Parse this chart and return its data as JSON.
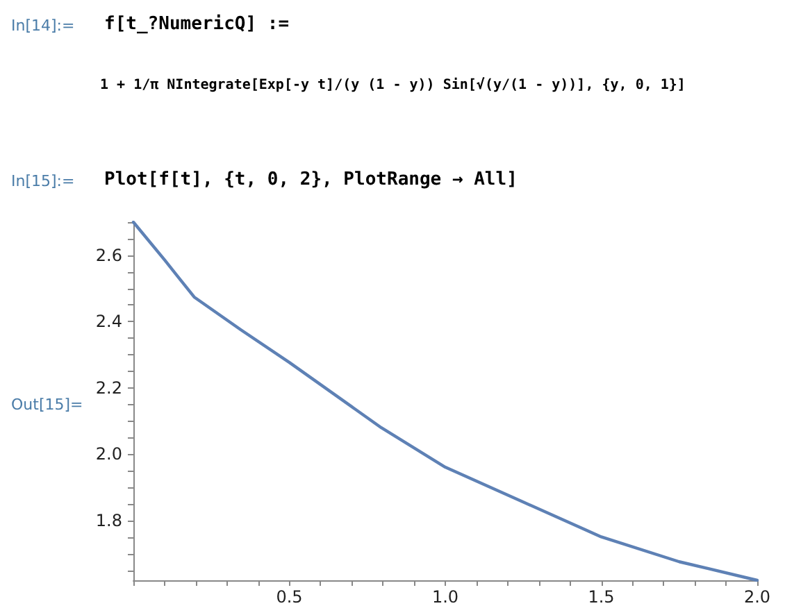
{
  "chart_data": {
    "type": "line",
    "x": [
      0,
      0.1,
      0.195,
      0.345,
      0.5,
      0.795,
      1.0,
      1.25,
      1.5,
      1.75,
      2.0
    ],
    "series": [
      {
        "color": "#5e81b5",
        "values": [
          2.7,
          2.586,
          2.474,
          2.375,
          2.277,
          2.08,
          1.961,
          1.856,
          1.751,
          1.676,
          1.62
        ]
      }
    ],
    "xlim": [
      0,
      2
    ],
    "xticks": [
      {
        "value": 0,
        "label": null
      },
      {
        "value": 0.1,
        "label": null
      },
      {
        "value": 0.2,
        "label": null
      },
      {
        "value": 0.3,
        "label": null
      },
      {
        "value": 0.4,
        "label": null
      },
      {
        "value": 0.5,
        "label": "0.5"
      },
      {
        "value": 0.6,
        "label": null
      },
      {
        "value": 0.7,
        "label": null
      },
      {
        "value": 0.8,
        "label": null
      },
      {
        "value": 0.9,
        "label": null
      },
      {
        "value": 1.0,
        "label": "1.0"
      },
      {
        "value": 1.1,
        "label": null
      },
      {
        "value": 1.2,
        "label": null
      },
      {
        "value": 1.3,
        "label": null
      },
      {
        "value": 1.4,
        "label": null
      },
      {
        "value": 1.5,
        "label": "1.5"
      },
      {
        "value": 1.6,
        "label": null
      },
      {
        "value": 1.7,
        "label": null
      },
      {
        "value": 1.8,
        "label": null
      },
      {
        "value": 1.9,
        "label": null
      },
      {
        "value": 2.0,
        "label": "2.0"
      }
    ],
    "ylim": [
      1.62,
      2.7
    ],
    "yticks": [
      {
        "value": 1.65,
        "label": null
      },
      {
        "value": 1.7,
        "label": null
      },
      {
        "value": 1.75,
        "label": null
      },
      {
        "value": 1.8,
        "label": "1.8"
      },
      {
        "value": 1.85,
        "label": null
      },
      {
        "value": 1.9,
        "label": null
      },
      {
        "value": 1.95,
        "label": null
      },
      {
        "value": 2.0,
        "label": "2.0"
      },
      {
        "value": 2.05,
        "label": null
      },
      {
        "value": 2.1,
        "label": null
      },
      {
        "value": 2.15,
        "label": null
      },
      {
        "value": 2.2,
        "label": "2.2"
      },
      {
        "value": 2.25,
        "label": null
      },
      {
        "value": 2.3,
        "label": null
      },
      {
        "value": 2.35,
        "label": null
      },
      {
        "value": 2.4,
        "label": "2.4"
      },
      {
        "value": 2.45,
        "label": null
      },
      {
        "value": 2.5,
        "label": null
      },
      {
        "value": 2.55,
        "label": null
      },
      {
        "value": 2.6,
        "label": "2.6"
      },
      {
        "value": 2.65,
        "label": null
      },
      {
        "value": 2.7,
        "label": null
      }
    ],
    "grid": false,
    "marker": "none",
    "line_style": "solid",
    "annotations": [
      "In[14]:=",
      "f[t_?NumericQ] :=",
      "1 + 1/π NIntegrate[Exp[-y t]/(y (1 - y)) Sin[√(y/(1 - y))], {y, 0, 1}]",
      "In[15]:=",
      "Plot[f[t], {t, 0, 2}, PlotRange → All]",
      "Out[15]="
    ]
  }
}
